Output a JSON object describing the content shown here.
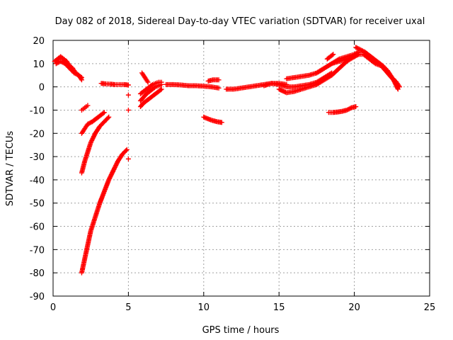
{
  "chart_data": {
    "type": "scatter",
    "title": "Day 082 of 2018, Sidereal Day-to-day VTEC variation (SDTVAR) for receiver uxal",
    "xlabel": "GPS time / hours",
    "ylabel": "SDTVAR / TECUs",
    "xlim": [
      0,
      25
    ],
    "ylim": [
      -90,
      20
    ],
    "x_ticks": [
      0,
      5,
      10,
      15,
      20,
      25
    ],
    "y_ticks": [
      -90,
      -80,
      -70,
      -60,
      -50,
      -40,
      -30,
      -20,
      -10,
      0,
      10,
      20
    ],
    "grid": true,
    "marker": "+",
    "color": "#ff0000",
    "series": [
      {
        "name": "arc-early-high",
        "x": [
          0.1,
          0.3,
          0.5,
          0.7,
          0.9,
          1.1,
          1.3,
          1.5,
          1.7,
          1.9
        ],
        "y": [
          11,
          12,
          13,
          12,
          11,
          9,
          8,
          6,
          5,
          4
        ]
      },
      {
        "name": "arc-early-mid",
        "x": [
          0.2,
          0.5,
          0.8,
          1.1,
          1.4,
          1.7,
          1.9
        ],
        "y": [
          10,
          11,
          10,
          8,
          6,
          5,
          3
        ]
      },
      {
        "name": "arc-short-2h",
        "x": [
          1.9,
          2.0,
          2.1,
          2.2,
          2.3
        ],
        "y": [
          -10,
          -9.5,
          -9,
          -8.5,
          -8
        ]
      },
      {
        "name": "arc-2h-to-3h",
        "x": [
          1.9,
          2.1,
          2.3,
          2.6,
          2.9,
          3.2,
          3.4
        ],
        "y": [
          -20,
          -18,
          -16,
          -15,
          -13.5,
          -12,
          -11
        ]
      },
      {
        "name": "arc-2h-to-4h",
        "x": [
          1.9,
          2.1,
          2.3,
          2.5,
          2.8,
          3.1,
          3.4,
          3.7
        ],
        "y": [
          -37,
          -32,
          -28,
          -24,
          -20,
          -17,
          -15,
          -13
        ]
      },
      {
        "name": "arc-deep",
        "x": [
          1.9,
          2.1,
          2.3,
          2.5,
          2.8,
          3.1,
          3.4,
          3.7,
          4.0,
          4.3,
          4.6,
          4.9
        ],
        "y": [
          -80,
          -74,
          -68,
          -62,
          -56,
          -50,
          -45,
          -40,
          -36,
          -32,
          -29,
          -27
        ]
      },
      {
        "name": "isolated-points",
        "x": [
          5.0,
          5.0,
          5.0
        ],
        "y": [
          -3.5,
          -10,
          -31
        ]
      },
      {
        "name": "arc-3h-to-5h",
        "x": [
          3.2,
          3.5,
          3.8,
          4.1,
          4.4,
          4.7,
          5.0
        ],
        "y": [
          1.5,
          1.3,
          1.2,
          1,
          1,
          1,
          0.8
        ]
      },
      {
        "name": "cluster-6h-up",
        "x": [
          5.8,
          6.0,
          6.2,
          6.4,
          6.6,
          6.8,
          7.0,
          7.2
        ],
        "y": [
          -3,
          -2,
          -1,
          0,
          1,
          1.5,
          2,
          2
        ]
      },
      {
        "name": "cluster-6h-mid",
        "x": [
          5.8,
          6.0,
          6.2,
          6.4,
          6.6,
          6.8,
          7.0,
          7.2
        ],
        "y": [
          -6,
          -4.5,
          -3,
          -2,
          -1,
          0,
          0.5,
          1
        ]
      },
      {
        "name": "cluster-6h-low",
        "x": [
          5.8,
          6.0,
          6.3,
          6.6,
          6.9,
          7.2
        ],
        "y": [
          -8.5,
          -7,
          -5.5,
          -4,
          -2.5,
          -1
        ]
      },
      {
        "name": "cluster-6h-spike",
        "x": [
          5.9,
          6.0,
          6.1,
          6.2,
          6.3
        ],
        "y": [
          6,
          5,
          4,
          3,
          2
        ]
      },
      {
        "name": "arc-7h-to-11h",
        "x": [
          7.5,
          8,
          8.5,
          9,
          9.5,
          10,
          10.5,
          11
        ],
        "y": [
          1,
          1,
          0.8,
          0.5,
          0.5,
          0.3,
          0,
          -0.5
        ]
      },
      {
        "name": "arc-10h-to-11h",
        "x": [
          10.3,
          10.6,
          11.0
        ],
        "y": [
          2.5,
          3,
          3
        ]
      },
      {
        "name": "arc-10h-low",
        "x": [
          10.0,
          10.3,
          10.6,
          10.9,
          11.2
        ],
        "y": [
          -13,
          -13.8,
          -14.5,
          -15,
          -15.3
        ]
      },
      {
        "name": "arc-11h-to-15h",
        "x": [
          11.5,
          12,
          12.5,
          13,
          13.5,
          14,
          14.5,
          15,
          15.5
        ],
        "y": [
          -1,
          -1,
          -0.5,
          0,
          0.5,
          1,
          1.5,
          1.5,
          1
        ]
      },
      {
        "name": "arc-14h-to-18h",
        "x": [
          14,
          14.5,
          15,
          15.5,
          16,
          16.5,
          17,
          17.5,
          18,
          18.5
        ],
        "y": [
          0.5,
          1.5,
          1,
          0,
          0,
          0.5,
          1,
          2,
          4,
          6
        ]
      },
      {
        "name": "arc-15h-to-19h",
        "x": [
          15,
          15.5,
          16,
          16.5,
          17,
          17.5,
          18,
          18.5,
          19,
          19.5,
          20
        ],
        "y": [
          -1,
          -2.5,
          -2,
          -1,
          0,
          1,
          3,
          5,
          8,
          11,
          13
        ]
      },
      {
        "name": "arc-15h-to-20h",
        "x": [
          15.5,
          16,
          16.5,
          17,
          17.5,
          18,
          18.5,
          19,
          19.5,
          20,
          20.3
        ],
        "y": [
          3.5,
          4,
          4.5,
          5,
          6,
          8,
          10,
          11,
          12,
          13,
          14
        ]
      },
      {
        "name": "arc-17h-to-20h",
        "x": [
          17.5,
          18,
          18.5,
          19,
          19.5,
          20,
          20.3
        ],
        "y": [
          6,
          8,
          10,
          12,
          13,
          14,
          15
        ]
      },
      {
        "name": "arc-18h-low",
        "x": [
          18.3,
          18.6,
          18.9,
          19.2,
          19.5,
          19.8,
          20.1
        ],
        "y": [
          -11,
          -11,
          -10.8,
          -10.5,
          -10,
          -9,
          -8.5
        ]
      },
      {
        "name": "arc-18h-peak",
        "x": [
          18.2,
          18.4,
          18.6
        ],
        "y": [
          12,
          13,
          14
        ]
      },
      {
        "name": "arc-20h-to-23h-a",
        "x": [
          20.1,
          20.4,
          20.7,
          21,
          21.3,
          21.6,
          21.9,
          22.2,
          22.5,
          22.8,
          23.0
        ],
        "y": [
          17,
          16,
          15,
          13.5,
          12,
          10.5,
          9,
          7,
          4,
          2,
          0
        ]
      },
      {
        "name": "arc-20h-to-23h-b",
        "x": [
          20.3,
          20.6,
          21,
          21.4,
          21.8,
          22.2,
          22.6,
          22.9
        ],
        "y": [
          14,
          14,
          12,
          10,
          9,
          6,
          3,
          -1
        ]
      }
    ]
  }
}
